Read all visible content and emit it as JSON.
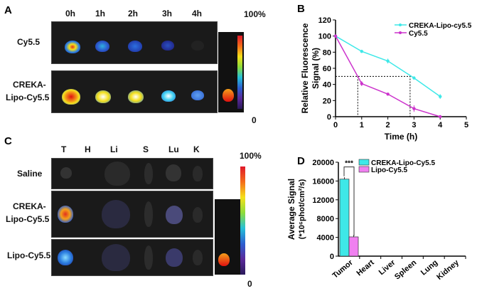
{
  "panels": {
    "a": "A",
    "b": "B",
    "c": "C",
    "d": "D"
  },
  "panel_a": {
    "times": [
      "0h",
      "1h",
      "2h",
      "3h",
      "4h"
    ],
    "rows": [
      "Cy5.5",
      "CREKA-",
      "Lipo-Cy5.5"
    ],
    "scale_max": "100%",
    "scale_min": "0"
  },
  "panel_c": {
    "organs": [
      "T",
      "H",
      "Li",
      "S",
      "Lu",
      "K"
    ],
    "rows": [
      "Saline",
      "CREKA-",
      "Lipo-Cy5.5",
      "Lipo-Cy5.5"
    ],
    "scale_max": "100%",
    "scale_min": "0"
  },
  "colors": {
    "creka": "#3ee8e8",
    "cy55": "#cc33cc",
    "lipo": "#f080f0"
  },
  "chart_data": [
    {
      "type": "line",
      "xlabel": "Time (h)",
      "ylabel_line1": "Relative Fluorescence",
      "ylabel_line2": "Signal (%)",
      "xlim": [
        0,
        5
      ],
      "ylim": [
        0,
        120
      ],
      "xticks": [
        "0",
        "1",
        "2",
        "3",
        "4",
        "5"
      ],
      "yticks": [
        "0",
        "20",
        "40",
        "60",
        "80",
        "100",
        "120"
      ],
      "x": [
        0,
        1,
        2,
        3,
        4
      ],
      "series": [
        {
          "name": "CREKA-Lipo-cy5.5",
          "values": [
            100,
            81,
            69,
            48,
            25
          ],
          "errors": [
            1,
            2,
            3,
            2,
            3
          ]
        },
        {
          "name": "Cy5.5",
          "values": [
            100,
            41,
            28,
            10,
            0
          ],
          "errors": [
            1,
            3,
            1,
            4,
            0
          ]
        }
      ],
      "annotations": "dotted lines at 50% crossing x≈0.85 and x≈2.85",
      "legend": "top-right"
    },
    {
      "type": "bar",
      "ylabel_line1": "Average Signal",
      "ylabel_line2": "(*10⁶phot/cm²/s)",
      "categories": [
        "Tumor",
        "Heart",
        "Liver",
        "Spleen",
        "Lung",
        "Kidney"
      ],
      "ylim": [
        0,
        20000
      ],
      "yticks": [
        "0",
        "4000",
        "8000",
        "12000",
        "16000",
        "20000"
      ],
      "series": [
        {
          "name": "CREKA-Lipo-Cy5.5",
          "values": [
            16400,
            0,
            0,
            0,
            0,
            0
          ]
        },
        {
          "name": "Lipo-Cy5.5",
          "values": [
            4100,
            0,
            0,
            0,
            0,
            0
          ]
        }
      ],
      "significance": "***",
      "legend": "top-right"
    }
  ]
}
